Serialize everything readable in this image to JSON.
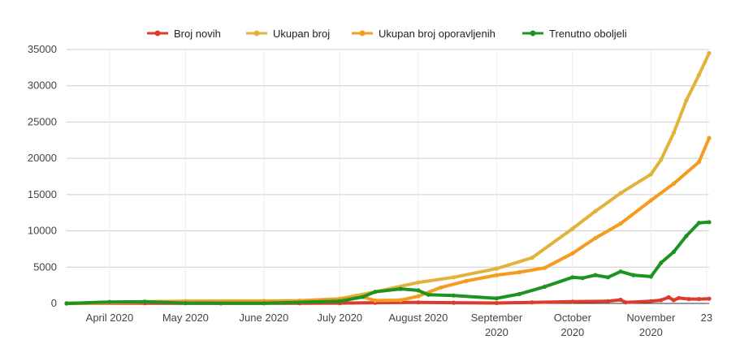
{
  "chart_data": {
    "type": "line",
    "title": "",
    "xlabel": "",
    "ylabel": "",
    "ylim": [
      0,
      35000
    ],
    "y_ticks": [
      0,
      5000,
      10000,
      15000,
      20000,
      25000,
      30000,
      35000
    ],
    "y_tick_labels": [
      "0",
      "5000",
      "10000",
      "15000",
      "20000",
      "25000",
      "30000",
      "35000"
    ],
    "x_range": [
      "2020-03-15",
      "2020-11-24"
    ],
    "x_ticks": [
      {
        "date": "2020-04-01",
        "line1": "April 2020",
        "line2": ""
      },
      {
        "date": "2020-05-01",
        "line1": "May 2020",
        "line2": ""
      },
      {
        "date": "2020-06-01",
        "line1": "June 2020",
        "line2": ""
      },
      {
        "date": "2020-07-01",
        "line1": "July 2020",
        "line2": ""
      },
      {
        "date": "2020-08-01",
        "line1": "August 2020",
        "line2": ""
      },
      {
        "date": "2020-09-01",
        "line1": "September",
        "line2": "2020"
      },
      {
        "date": "2020-10-01",
        "line1": "October",
        "line2": "2020"
      },
      {
        "date": "2020-11-01",
        "line1": "November",
        "line2": "2020"
      },
      {
        "date": "2020-11-23",
        "line1": "23",
        "line2": ""
      }
    ],
    "grid": true,
    "legend_position": "top",
    "series": [
      {
        "name": "Broj novih",
        "color": "#dc3b2f",
        "points": [
          [
            "2020-03-15",
            10
          ],
          [
            "2020-04-15",
            30
          ],
          [
            "2020-05-15",
            15
          ],
          [
            "2020-06-15",
            20
          ],
          [
            "2020-07-01",
            40
          ],
          [
            "2020-07-15",
            100
          ],
          [
            "2020-08-01",
            150
          ],
          [
            "2020-08-15",
            100
          ],
          [
            "2020-09-01",
            60
          ],
          [
            "2020-09-15",
            150
          ],
          [
            "2020-10-01",
            250
          ],
          [
            "2020-10-15",
            300
          ],
          [
            "2020-10-20",
            500
          ],
          [
            "2020-10-22",
            150
          ],
          [
            "2020-11-01",
            300
          ],
          [
            "2020-11-05",
            450
          ],
          [
            "2020-11-08",
            850
          ],
          [
            "2020-11-10",
            450
          ],
          [
            "2020-11-12",
            750
          ],
          [
            "2020-11-16",
            600
          ],
          [
            "2020-11-20",
            600
          ],
          [
            "2020-11-24",
            650
          ]
        ]
      },
      {
        "name": "Ukupan broj",
        "color": "#e2b33c",
        "points": [
          [
            "2020-03-15",
            0
          ],
          [
            "2020-04-01",
            150
          ],
          [
            "2020-04-15",
            250
          ],
          [
            "2020-05-01",
            300
          ],
          [
            "2020-06-01",
            330
          ],
          [
            "2020-06-15",
            380
          ],
          [
            "2020-07-01",
            650
          ],
          [
            "2020-07-15",
            1600
          ],
          [
            "2020-08-01",
            2900
          ],
          [
            "2020-08-15",
            3600
          ],
          [
            "2020-09-01",
            4800
          ],
          [
            "2020-09-15",
            6300
          ],
          [
            "2020-10-01",
            10300
          ],
          [
            "2020-10-10",
            12700
          ],
          [
            "2020-10-20",
            15200
          ],
          [
            "2020-11-01",
            17800
          ],
          [
            "2020-11-05",
            19800
          ],
          [
            "2020-11-10",
            23500
          ],
          [
            "2020-11-15",
            28000
          ],
          [
            "2020-11-20",
            31500
          ],
          [
            "2020-11-24",
            34500
          ]
        ]
      },
      {
        "name": "Ukupan broj oporavljenih",
        "color": "#f39c1f",
        "points": [
          [
            "2020-03-15",
            0
          ],
          [
            "2020-04-01",
            100
          ],
          [
            "2020-05-01",
            300
          ],
          [
            "2020-06-01",
            320
          ],
          [
            "2020-06-15",
            360
          ],
          [
            "2020-07-01",
            600
          ],
          [
            "2020-07-10",
            900
          ],
          [
            "2020-07-15",
            400
          ],
          [
            "2020-07-25",
            450
          ],
          [
            "2020-08-01",
            1000
          ],
          [
            "2020-08-10",
            2200
          ],
          [
            "2020-08-20",
            3100
          ],
          [
            "2020-09-01",
            3900
          ],
          [
            "2020-09-10",
            4300
          ],
          [
            "2020-09-20",
            4900
          ],
          [
            "2020-10-01",
            6900
          ],
          [
            "2020-10-10",
            9000
          ],
          [
            "2020-10-20",
            11000
          ],
          [
            "2020-11-01",
            14200
          ],
          [
            "2020-11-10",
            16500
          ],
          [
            "2020-11-20",
            19500
          ],
          [
            "2020-11-24",
            22800
          ]
        ]
      },
      {
        "name": "Trenutno oboljeli",
        "color": "#1e9320",
        "points": [
          [
            "2020-03-15",
            0
          ],
          [
            "2020-04-01",
            200
          ],
          [
            "2020-04-15",
            230
          ],
          [
            "2020-05-01",
            50
          ],
          [
            "2020-06-01",
            20
          ],
          [
            "2020-07-01",
            300
          ],
          [
            "2020-07-10",
            900
          ],
          [
            "2020-07-15",
            1600
          ],
          [
            "2020-07-25",
            2000
          ],
          [
            "2020-08-01",
            1800
          ],
          [
            "2020-08-05",
            1200
          ],
          [
            "2020-08-15",
            1100
          ],
          [
            "2020-09-01",
            700
          ],
          [
            "2020-09-10",
            1300
          ],
          [
            "2020-09-20",
            2300
          ],
          [
            "2020-10-01",
            3600
          ],
          [
            "2020-10-05",
            3500
          ],
          [
            "2020-10-10",
            3900
          ],
          [
            "2020-10-15",
            3600
          ],
          [
            "2020-10-20",
            4400
          ],
          [
            "2020-10-25",
            3900
          ],
          [
            "2020-11-01",
            3700
          ],
          [
            "2020-11-05",
            5600
          ],
          [
            "2020-11-10",
            7100
          ],
          [
            "2020-11-15",
            9300
          ],
          [
            "2020-11-20",
            11100
          ],
          [
            "2020-11-24",
            11200
          ]
        ]
      }
    ]
  }
}
